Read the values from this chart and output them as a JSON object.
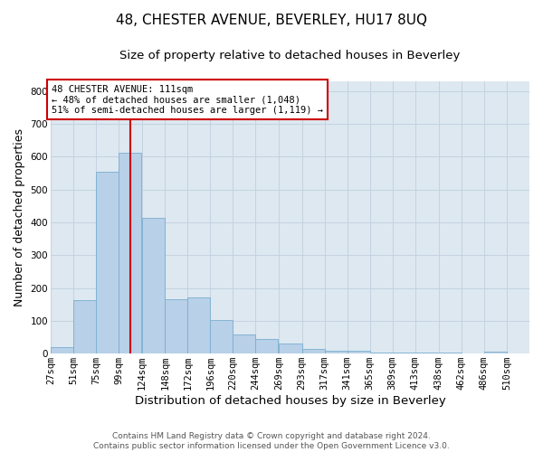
{
  "title": "48, CHESTER AVENUE, BEVERLEY, HU17 8UQ",
  "subtitle": "Size of property relative to detached houses in Beverley",
  "xlabel": "Distribution of detached houses by size in Beverley",
  "ylabel": "Number of detached properties",
  "bar_color": "#b8d0e8",
  "bar_edge_color": "#7aaed0",
  "background_color": "#ffffff",
  "plot_bg_color": "#dde8f0",
  "grid_color": "#c0d0de",
  "vline_x": 111,
  "vline_color": "#cc0000",
  "annotation_text": "48 CHESTER AVENUE: 111sqm\n← 48% of detached houses are smaller (1,048)\n51% of semi-detached houses are larger (1,119) →",
  "annotation_box_edge_color": "#cc0000",
  "bins": [
    27,
    51,
    75,
    99,
    124,
    148,
    172,
    196,
    220,
    244,
    269,
    293,
    317,
    341,
    365,
    389,
    413,
    438,
    462,
    486,
    510
  ],
  "values": [
    20,
    163,
    555,
    613,
    413,
    165,
    170,
    102,
    57,
    44,
    32,
    15,
    10,
    10,
    3,
    3,
    3,
    3,
    0,
    7,
    0
  ],
  "ylim": [
    0,
    830
  ],
  "yticks": [
    0,
    100,
    200,
    300,
    400,
    500,
    600,
    700,
    800
  ],
  "footer_text": "Contains HM Land Registry data © Crown copyright and database right 2024.\nContains public sector information licensed under the Open Government Licence v3.0.",
  "title_fontsize": 11,
  "subtitle_fontsize": 9.5,
  "ylabel_fontsize": 9,
  "xlabel_fontsize": 9.5,
  "footer_fontsize": 6.5,
  "tick_fontsize": 7.5,
  "annotation_fontsize": 7.5
}
